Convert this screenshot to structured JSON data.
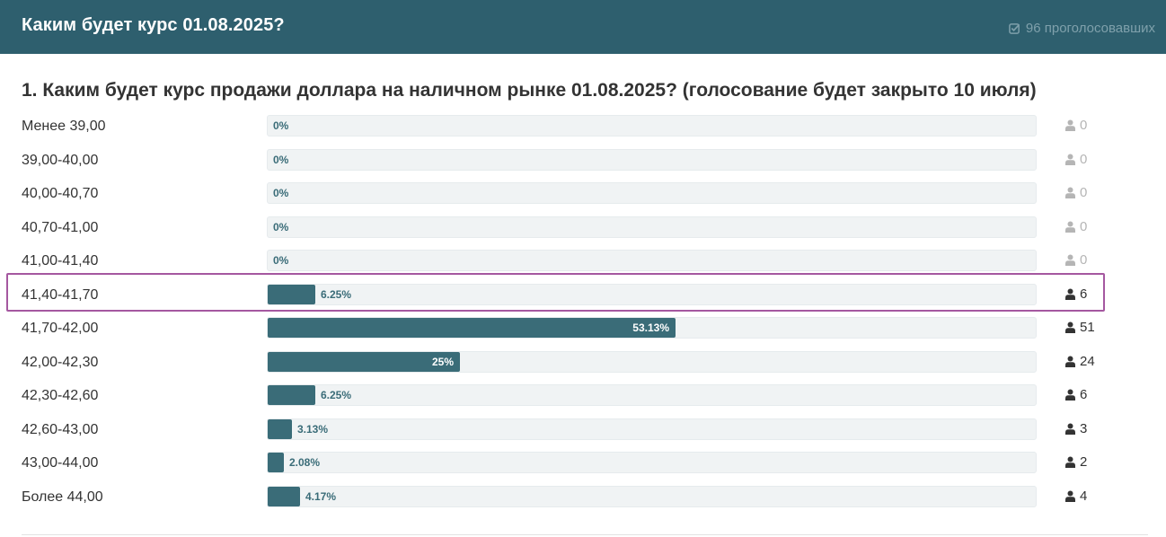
{
  "header": {
    "title": "Каким будет курс 01.08.2025?",
    "votes_label": "96 проголосовавших",
    "votes_icon": "check-square-icon"
  },
  "question": {
    "title": "1. Каким будет курс продажи доллара на наличном рынке 01.08.2025? (голосование будет закрыто 10 июля)"
  },
  "options": [
    {
      "label": "Менее 39,00",
      "percent_label": "0%",
      "percent": 0,
      "count": "0"
    },
    {
      "label": "39,00-40,00",
      "percent_label": "0%",
      "percent": 0,
      "count": "0"
    },
    {
      "label": "40,00-40,70",
      "percent_label": "0%",
      "percent": 0,
      "count": "0"
    },
    {
      "label": "40,70-41,00",
      "percent_label": "0%",
      "percent": 0,
      "count": "0"
    },
    {
      "label": "41,00-41,40",
      "percent_label": "0%",
      "percent": 0,
      "count": "0"
    },
    {
      "label": "41,40-41,70",
      "percent_label": "6.25%",
      "percent": 6.25,
      "count": "6",
      "highlighted": true
    },
    {
      "label": "41,70-42,00",
      "percent_label": "53.13%",
      "percent": 53.13,
      "count": "51"
    },
    {
      "label": "42,00-42,30",
      "percent_label": "25%",
      "percent": 25,
      "count": "24"
    },
    {
      "label": "42,30-42,60",
      "percent_label": "6.25%",
      "percent": 6.25,
      "count": "6"
    },
    {
      "label": "42,60-43,00",
      "percent_label": "3.13%",
      "percent": 3.13,
      "count": "3"
    },
    {
      "label": "43,00-44,00",
      "percent_label": "2.08%",
      "percent": 2.08,
      "count": "2"
    },
    {
      "label": "Более 44,00",
      "percent_label": "4.17%",
      "percent": 4.17,
      "count": "4"
    }
  ],
  "colors": {
    "header_bg": "#2e5f6e",
    "bar_fill": "#3a6c78",
    "highlight_border": "#a558a0"
  }
}
